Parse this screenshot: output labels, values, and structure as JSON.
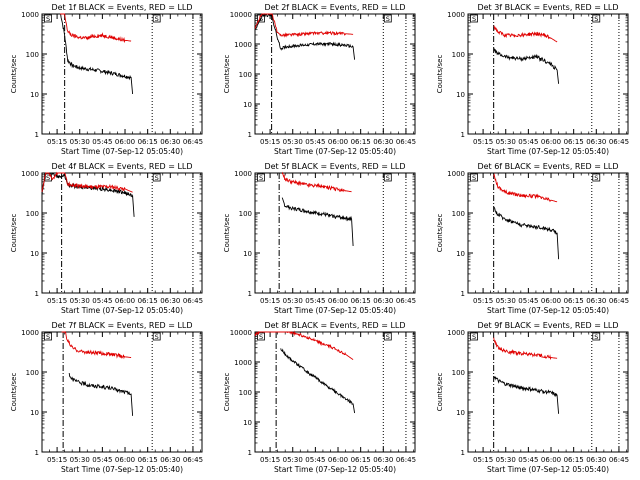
{
  "chart_data": [
    {
      "type": "line",
      "title": "Det 1f BLACK = Events, RED = LLD",
      "xlabel": "Start Time (07-Sep-12 05:05:40)",
      "ylabel": "Counts/sec",
      "x_ticks": [
        "05:15",
        "05:30",
        "05:45",
        "06:00",
        "06:15",
        "06:30",
        "06:45"
      ],
      "y_ticks": [
        "1",
        "10",
        "100",
        "1000"
      ],
      "y_scale": "log",
      "ylim": [
        1,
        1000
      ],
      "marker_labels": [
        "S",
        "S"
      ],
      "series": [
        {
          "name": "Events",
          "color": "#000000",
          "x": [
            "05:17",
            "05:20",
            "05:22",
            "05:25",
            "05:30",
            "05:35",
            "05:40",
            "05:45",
            "05:50",
            "05:55",
            "06:00",
            "06:04",
            "06:05"
          ],
          "y": [
            1200,
            300,
            70,
            52,
            45,
            42,
            40,
            37,
            34,
            31,
            28,
            26,
            10
          ]
        },
        {
          "name": "LLD",
          "color": "#e00000",
          "x": [
            "05:17",
            "05:20",
            "05:22",
            "05:25",
            "05:30",
            "05:35",
            "05:40",
            "05:45",
            "05:50",
            "05:55",
            "06:00",
            "06:04"
          ],
          "y": [
            1200,
            1000,
            360,
            290,
            260,
            250,
            280,
            290,
            270,
            240,
            220,
            210
          ]
        }
      ],
      "vlines": [
        {
          "x": "05:20",
          "style": "dash-dot"
        },
        {
          "x": "06:18",
          "style": "dotted"
        },
        {
          "x": "06:45",
          "style": "dotted"
        }
      ]
    },
    {
      "type": "line",
      "title": "Det 2f BLACK = Events, RED = LLD",
      "xlabel": "Start Time (07-Sep-12 05:05:40)",
      "ylabel": "Counts/sec",
      "x_ticks": [
        "05:15",
        "05:30",
        "05:45",
        "06:00",
        "06:15",
        "06:30",
        "06:45"
      ],
      "y_ticks": [
        "1",
        "10",
        "100",
        "1000",
        "10000"
      ],
      "y_scale": "log",
      "ylim": [
        1,
        10000
      ],
      "marker_labels": [
        "S",
        "S"
      ],
      "series": [
        {
          "name": "Events",
          "color": "#000000",
          "x": [
            "05:05",
            "05:10",
            "05:16",
            "05:20",
            "05:22",
            "05:25",
            "05:35",
            "05:45",
            "05:55",
            "06:05",
            "06:10",
            "06:11"
          ],
          "y": [
            3000,
            9000,
            9000,
            1500,
            700,
            800,
            900,
            1000,
            1000,
            900,
            800,
            300
          ]
        },
        {
          "name": "LLD",
          "color": "#e00000",
          "x": [
            "05:05",
            "05:10",
            "05:16",
            "05:20",
            "05:22",
            "05:25",
            "05:35",
            "05:45",
            "05:55",
            "06:05",
            "06:10"
          ],
          "y": [
            3200,
            12000,
            12000,
            2200,
            2000,
            2000,
            2100,
            2300,
            2300,
            2200,
            2100
          ]
        }
      ],
      "vlines": [
        {
          "x": "05:16",
          "style": "dash-dot"
        },
        {
          "x": "06:30",
          "style": "dotted"
        },
        {
          "x": "06:45",
          "style": "dotted"
        }
      ]
    },
    {
      "type": "line",
      "title": "Det 3f BLACK = Events, RED = LLD",
      "xlabel": "Start Time (07-Sep-12 05:05:40)",
      "ylabel": "Counts/sec",
      "x_ticks": [
        "05:15",
        "05:30",
        "05:45",
        "06:00",
        "06:15",
        "06:30",
        "06:45"
      ],
      "y_ticks": [
        "1",
        "10",
        "100",
        "1000"
      ],
      "y_scale": "log",
      "ylim": [
        1,
        1000
      ],
      "marker_labels": [
        "S",
        "S"
      ],
      "series": [
        {
          "name": "Events",
          "color": "#000000",
          "x": [
            "05:22",
            "05:25",
            "05:30",
            "05:35",
            "05:40",
            "05:45",
            "05:50",
            "05:55",
            "06:00",
            "06:04",
            "06:05"
          ],
          "y": [
            130,
            100,
            85,
            80,
            75,
            80,
            85,
            70,
            55,
            40,
            18
          ]
        },
        {
          "name": "LLD",
          "color": "#e00000",
          "x": [
            "05:22",
            "05:25",
            "05:30",
            "05:35",
            "05:40",
            "05:45",
            "05:50",
            "05:55",
            "06:00",
            "06:04"
          ],
          "y": [
            500,
            350,
            290,
            290,
            300,
            310,
            320,
            300,
            250,
            200
          ]
        }
      ],
      "vlines": [
        {
          "x": "05:22",
          "style": "dash-dot"
        },
        {
          "x": "06:27",
          "style": "dotted"
        },
        {
          "x": "06:45",
          "style": "dotted"
        }
      ]
    },
    {
      "type": "line",
      "title": "Det 4f BLACK = Events, RED = LLD",
      "xlabel": "Start Time (07-Sep-12 05:05:40)",
      "ylabel": "Counts/sec",
      "x_ticks": [
        "05:15",
        "05:30",
        "05:45",
        "06:00",
        "06:15",
        "06:30",
        "06:45"
      ],
      "y_ticks": [
        "1",
        "10",
        "100",
        "1000"
      ],
      "y_scale": "log",
      "ylim": [
        1,
        1000
      ],
      "marker_labels": [
        "S",
        "S"
      ],
      "series": [
        {
          "name": "Events",
          "color": "#000000",
          "x": [
            "05:05",
            "05:08",
            "05:12",
            "05:16",
            "05:20",
            "05:22",
            "05:30",
            "05:40",
            "05:50",
            "06:00",
            "06:05",
            "06:06"
          ],
          "y": [
            300,
            1200,
            1000,
            800,
            900,
            500,
            450,
            420,
            380,
            320,
            270,
            80
          ]
        },
        {
          "name": "LLD",
          "color": "#e00000",
          "x": [
            "05:05",
            "05:08",
            "05:12",
            "05:16",
            "05:20",
            "05:22",
            "05:30",
            "05:40",
            "05:50",
            "06:00",
            "06:05"
          ],
          "y": [
            350,
            1300,
            650,
            1200,
            1100,
            520,
            470,
            450,
            450,
            400,
            330
          ]
        }
      ],
      "vlines": [
        {
          "x": "05:18",
          "style": "dash-dot"
        },
        {
          "x": "06:18",
          "style": "dotted"
        },
        {
          "x": "06:45",
          "style": "dotted"
        }
      ]
    },
    {
      "type": "line",
      "title": "Det 5f BLACK = Events, RED = LLD",
      "xlabel": "Start Time (07-Sep-12 05:05:40)",
      "ylabel": "Counts/sec",
      "x_ticks": [
        "05:15",
        "05:30",
        "05:45",
        "06:00",
        "06:15",
        "06:30",
        "06:45"
      ],
      "y_ticks": [
        "1",
        "10",
        "100",
        "1000"
      ],
      "y_scale": "log",
      "ylim": [
        1,
        1000
      ],
      "marker_labels": [
        "S",
        "S"
      ],
      "series": [
        {
          "name": "Events",
          "color": "#000000",
          "x": [
            "05:23",
            "05:25",
            "05:30",
            "05:35",
            "05:40",
            "05:45",
            "05:50",
            "05:55",
            "06:00",
            "06:05",
            "06:09",
            "06:10"
          ],
          "y": [
            220,
            150,
            130,
            120,
            110,
            100,
            95,
            85,
            80,
            75,
            70,
            15
          ]
        },
        {
          "name": "LLD",
          "color": "#e00000",
          "x": [
            "05:23",
            "05:25",
            "05:30",
            "05:35",
            "05:40",
            "05:45",
            "05:50",
            "05:55",
            "06:00",
            "06:05",
            "06:09"
          ],
          "y": [
            1000,
            700,
            600,
            550,
            500,
            480,
            460,
            420,
            380,
            360,
            340
          ]
        }
      ],
      "vlines": [
        {
          "x": "05:21",
          "style": "dash-dot"
        },
        {
          "x": "06:30",
          "style": "dotted"
        },
        {
          "x": "06:45",
          "style": "dotted"
        }
      ]
    },
    {
      "type": "line",
      "title": "Det 6f BLACK = Events, RED = LLD",
      "xlabel": "Start Time (07-Sep-12 05:05:40)",
      "ylabel": "Counts/sec",
      "x_ticks": [
        "05:15",
        "05:30",
        "05:45",
        "06:00",
        "06:15",
        "06:30",
        "06:45"
      ],
      "y_ticks": [
        "1",
        "10",
        "100",
        "1000"
      ],
      "y_scale": "log",
      "ylim": [
        1,
        1000
      ],
      "marker_labels": [
        "S",
        "S"
      ],
      "series": [
        {
          "name": "Events",
          "color": "#000000",
          "x": [
            "05:22",
            "05:25",
            "05:30",
            "05:35",
            "05:40",
            "05:45",
            "05:50",
            "05:55",
            "06:00",
            "06:04",
            "06:05"
          ],
          "y": [
            130,
            90,
            70,
            60,
            50,
            48,
            45,
            42,
            38,
            32,
            7
          ]
        },
        {
          "name": "LLD",
          "color": "#e00000",
          "x": [
            "05:22",
            "05:25",
            "05:30",
            "05:35",
            "05:40",
            "05:45",
            "05:50",
            "05:55",
            "06:00",
            "06:04"
          ],
          "y": [
            900,
            450,
            330,
            300,
            280,
            270,
            260,
            230,
            210,
            190
          ]
        }
      ],
      "vlines": [
        {
          "x": "05:22",
          "style": "dash-dot"
        },
        {
          "x": "06:27",
          "style": "dotted"
        },
        {
          "x": "06:45",
          "style": "dotted"
        }
      ]
    },
    {
      "type": "line",
      "title": "Det 7f BLACK = Events, RED = LLD",
      "xlabel": "Start Time (07-Sep-12 05:05:40)",
      "ylabel": "Counts/sec",
      "x_ticks": [
        "05:15",
        "05:30",
        "05:45",
        "06:00",
        "06:15",
        "06:30",
        "06:45"
      ],
      "y_ticks": [
        "1",
        "10",
        "100",
        "1000"
      ],
      "y_scale": "log",
      "ylim": [
        1,
        1000
      ],
      "marker_labels": [
        "S",
        "S"
      ],
      "series": [
        {
          "name": "Events",
          "color": "#000000",
          "x": [
            "05:23",
            "05:25",
            "05:30",
            "05:35",
            "05:40",
            "05:45",
            "05:50",
            "05:55",
            "06:00",
            "06:04",
            "06:05"
          ],
          "y": [
            90,
            65,
            55,
            48,
            45,
            42,
            40,
            35,
            32,
            28,
            8
          ]
        },
        {
          "name": "LLD",
          "color": "#e00000",
          "x": [
            "05:18",
            "05:20",
            "05:22",
            "05:25",
            "05:30",
            "05:35",
            "05:40",
            "05:45",
            "05:50",
            "05:55",
            "06:00",
            "06:04"
          ],
          "y": [
            1500,
            1100,
            600,
            400,
            330,
            310,
            300,
            290,
            280,
            260,
            240,
            230
          ]
        }
      ],
      "vlines": [
        {
          "x": "05:19",
          "style": "dash-dot"
        },
        {
          "x": "06:18",
          "style": "dotted"
        },
        {
          "x": "06:45",
          "style": "dotted"
        }
      ]
    },
    {
      "type": "line",
      "title": "Det 8f BLACK = Events, RED = LLD",
      "xlabel": "Start Time (07-Sep-12 05:05:40)",
      "ylabel": "Counts/sec",
      "x_ticks": [
        "05:15",
        "05:30",
        "05:45",
        "06:00",
        "06:15",
        "06:30",
        "06:45"
      ],
      "y_ticks": [
        "1",
        "10",
        "100",
        "1000",
        "10000"
      ],
      "y_scale": "log",
      "ylim": [
        1,
        10000
      ],
      "marker_labels": [
        "S",
        "S"
      ],
      "series": [
        {
          "name": "Events",
          "color": "#000000",
          "x": [
            "05:22",
            "05:25",
            "05:30",
            "05:35",
            "05:40",
            "05:45",
            "05:50",
            "05:55",
            "06:00",
            "06:05",
            "06:10",
            "06:11"
          ],
          "y": [
            2800,
            1800,
            1100,
            700,
            450,
            300,
            200,
            130,
            90,
            60,
            40,
            20
          ]
        },
        {
          "name": "LLD",
          "color": "#e00000",
          "x": [
            "05:05",
            "05:10",
            "05:15",
            "05:20",
            "05:25",
            "05:30",
            "05:35",
            "05:40",
            "05:45",
            "05:50",
            "05:55",
            "06:00",
            "06:05",
            "06:10"
          ],
          "y": [
            8000,
            12000,
            12000,
            12000,
            11000,
            9500,
            8000,
            6500,
            5000,
            4000,
            3200,
            2500,
            1800,
            1200
          ]
        }
      ],
      "vlines": [
        {
          "x": "05:19",
          "style": "dash-dot"
        },
        {
          "x": "06:30",
          "style": "dotted"
        },
        {
          "x": "06:45",
          "style": "dotted"
        }
      ]
    },
    {
      "type": "line",
      "title": "Det 9f BLACK = Events, RED = LLD",
      "xlabel": "Start Time (07-Sep-12 05:05:40)",
      "ylabel": "Counts/sec",
      "x_ticks": [
        "05:15",
        "05:30",
        "05:45",
        "06:00",
        "06:15",
        "06:30",
        "06:45"
      ],
      "y_ticks": [
        "1",
        "10",
        "100",
        "1000"
      ],
      "y_scale": "log",
      "ylim": [
        1,
        1000
      ],
      "marker_labels": [
        "S",
        "S"
      ],
      "series": [
        {
          "name": "Events",
          "color": "#000000",
          "x": [
            "05:22",
            "05:25",
            "05:30",
            "05:35",
            "05:40",
            "05:45",
            "05:50",
            "05:55",
            "06:00",
            "06:04",
            "06:05"
          ],
          "y": [
            80,
            60,
            50,
            45,
            40,
            38,
            35,
            33,
            30,
            26,
            9
          ]
        },
        {
          "name": "LLD",
          "color": "#e00000",
          "x": [
            "05:22",
            "05:25",
            "05:30",
            "05:35",
            "05:40",
            "05:45",
            "05:50",
            "05:55",
            "06:00",
            "06:04"
          ],
          "y": [
            700,
            400,
            330,
            310,
            290,
            280,
            260,
            250,
            230,
            220
          ]
        }
      ],
      "vlines": [
        {
          "x": "05:22",
          "style": "dash-dot"
        },
        {
          "x": "06:27",
          "style": "dotted"
        },
        {
          "x": "06:45",
          "style": "dotted"
        }
      ]
    }
  ]
}
